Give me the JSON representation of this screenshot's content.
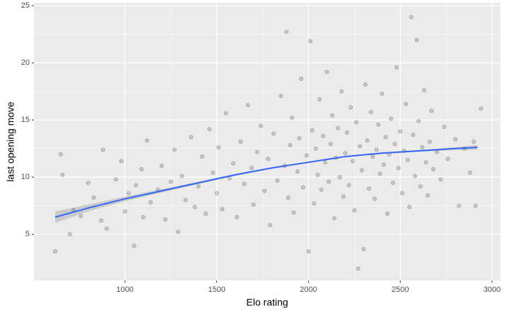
{
  "chart_data": {
    "type": "scatter",
    "x_label": "Elo rating",
    "y_label": "last opening move",
    "xlim": [
      504,
      3046
    ],
    "ylim": [
      0.95,
      25.25
    ],
    "xticks": [
      1000,
      1500,
      2000,
      2500,
      3000
    ],
    "yticks": [
      5,
      10,
      15,
      20,
      25
    ],
    "grid": true,
    "point_color": "#000000",
    "x": [
      620,
      650,
      660,
      700,
      720,
      760,
      800,
      830,
      870,
      880,
      900,
      950,
      980,
      1000,
      1020,
      1050,
      1060,
      1090,
      1100,
      1120,
      1140,
      1180,
      1200,
      1220,
      1250,
      1270,
      1290,
      1310,
      1330,
      1360,
      1380,
      1400,
      1420,
      1440,
      1460,
      1480,
      1500,
      1510,
      1530,
      1550,
      1570,
      1590,
      1610,
      1630,
      1650,
      1670,
      1690,
      1700,
      1720,
      1740,
      1760,
      1780,
      1790,
      1810,
      1830,
      1850,
      1870,
      1880,
      1890,
      1900,
      1910,
      1920,
      1940,
      1950,
      1960,
      1970,
      1990,
      2000,
      2010,
      2020,
      2030,
      2040,
      2050,
      2060,
      2070,
      2080,
      2090,
      2100,
      2110,
      2120,
      2130,
      2140,
      2150,
      2160,
      2170,
      2180,
      2190,
      2200,
      2210,
      2220,
      2230,
      2240,
      2250,
      2260,
      2270,
      2280,
      2290,
      2300,
      2310,
      2320,
      2330,
      2340,
      2350,
      2360,
      2370,
      2380,
      2390,
      2400,
      2410,
      2420,
      2430,
      2440,
      2450,
      2460,
      2470,
      2480,
      2490,
      2500,
      2510,
      2520,
      2530,
      2540,
      2550,
      2560,
      2570,
      2580,
      2590,
      2600,
      2610,
      2620,
      2630,
      2640,
      2650,
      2660,
      2670,
      2680,
      2700,
      2720,
      2740,
      2760,
      2800,
      2820,
      2850,
      2880,
      2900,
      2910,
      2940
    ],
    "y": [
      3.5,
      12,
      10.2,
      5,
      7.1,
      6.6,
      9.5,
      8.2,
      6.2,
      12.4,
      5.5,
      9.8,
      11.4,
      7,
      8.6,
      4,
      9.3,
      10.7,
      6.5,
      13.2,
      7.8,
      8.9,
      11,
      6.3,
      9.6,
      12.4,
      5.2,
      10.1,
      8,
      13.5,
      7.4,
      9.2,
      11.8,
      6.8,
      14.2,
      10.4,
      8.6,
      12.6,
      7.2,
      15.6,
      9.9,
      11.2,
      6.5,
      13.1,
      9.4,
      16.3,
      10.8,
      7.6,
      12.2,
      14.5,
      8.8,
      11.6,
      5.8,
      13.8,
      9.7,
      17.1,
      11,
      22.7,
      8.2,
      12.8,
      15.2,
      6.9,
      10.5,
      13.4,
      18.6,
      9.1,
      11.9,
      3.5,
      21.9,
      14.1,
      7.7,
      12.5,
      10.2,
      16.8,
      8.9,
      13.6,
      11.3,
      19.2,
      9.6,
      12.9,
      15.4,
      6.4,
      11.7,
      14.3,
      10,
      17.5,
      8.3,
      12.1,
      13.9,
      9.3,
      16.1,
      11.4,
      7.1,
      14.8,
      2,
      12.7,
      10.6,
      3.7,
      18.1,
      13.2,
      9,
      15.7,
      11.8,
      8.1,
      12.4,
      14.6,
      10.3,
      17.3,
      11.1,
      13.5,
      6.8,
      12,
      15.1,
      9.5,
      12.9,
      19.6,
      10.8,
      14,
      8.6,
      12.3,
      16.4,
      11.5,
      7.4,
      24,
      13.7,
      10.1,
      22,
      14.9,
      9.2,
      12.6,
      17.6,
      11.3,
      8.4,
      13.1,
      15.8,
      10.7,
      12.2,
      9.8,
      14.4,
      11.6,
      13.3,
      7.5,
      12.5,
      10.4,
      13.1,
      7.5,
      16
    ],
    "smooth": {
      "color": "#3366ff",
      "band_color": "#999999",
      "x": [
        620,
        800,
        1000,
        1200,
        1400,
        1600,
        1800,
        2000,
        2200,
        2400,
        2600,
        2800,
        2920
      ],
      "y": [
        6.5,
        7.3,
        8.1,
        8.8,
        9.5,
        10.2,
        10.8,
        11.3,
        11.8,
        12.1,
        12.3,
        12.5,
        12.6
      ],
      "lower": [
        6.0,
        7.0,
        7.9,
        8.65,
        9.4,
        10.12,
        10.73,
        11.24,
        11.74,
        12.04,
        12.23,
        12.38,
        12.4
      ],
      "upper": [
        7.0,
        7.6,
        8.3,
        8.95,
        9.6,
        10.28,
        10.87,
        11.36,
        11.86,
        12.16,
        12.37,
        12.62,
        12.8
      ]
    }
  }
}
